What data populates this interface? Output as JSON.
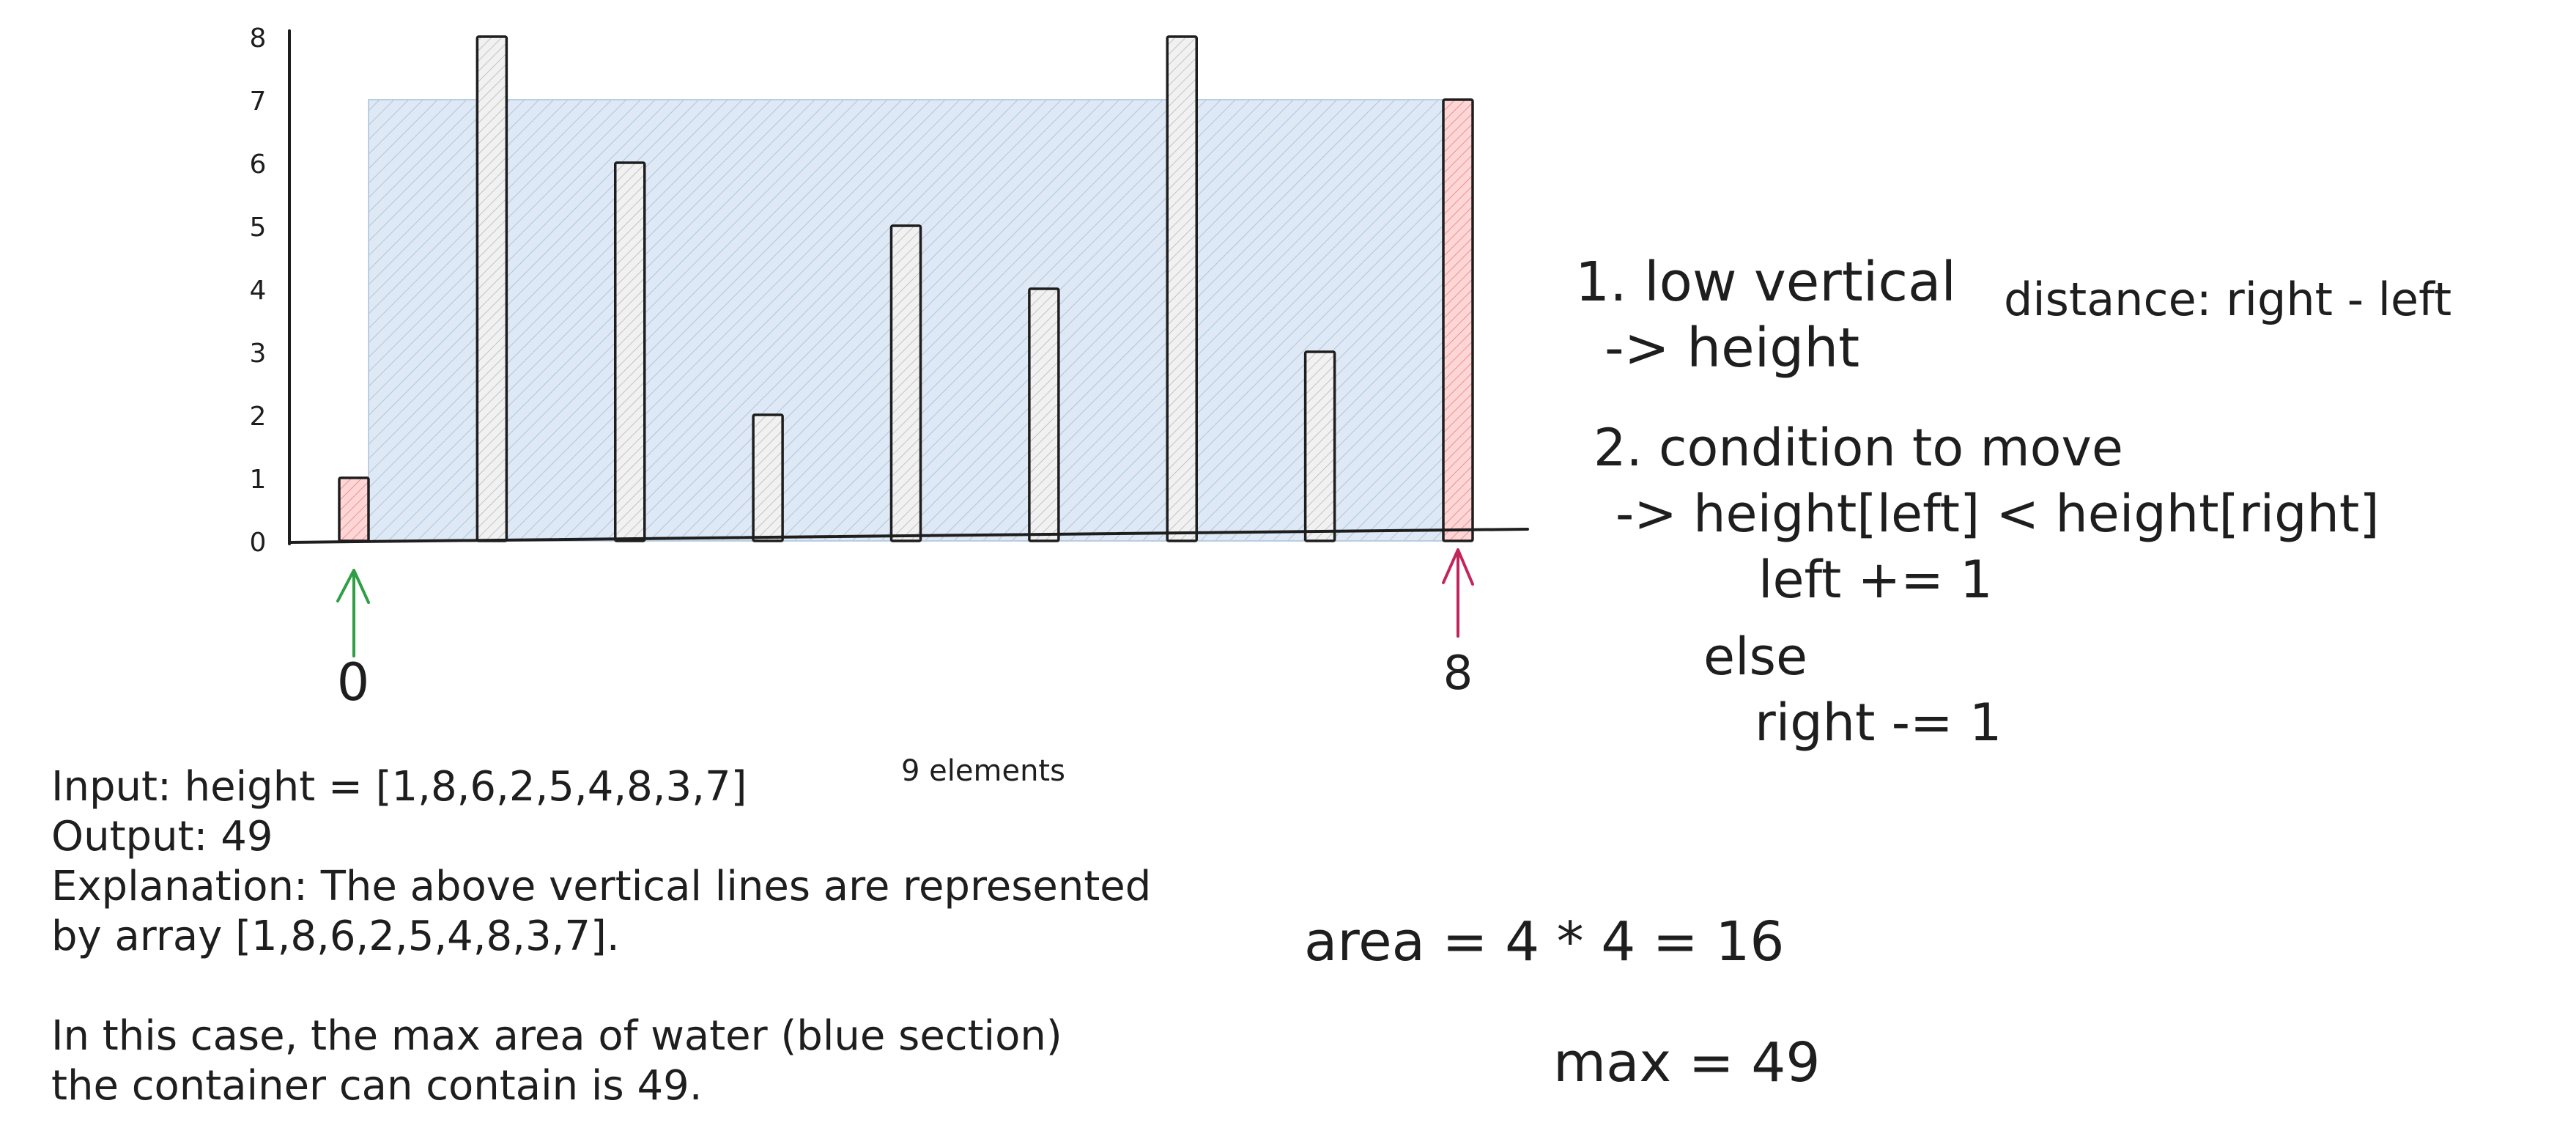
{
  "chart_data": {
    "type": "bar",
    "categories": [
      "0",
      "1",
      "2",
      "3",
      "4",
      "5",
      "6",
      "7",
      "8"
    ],
    "values": [
      1,
      8,
      6,
      2,
      5,
      4,
      8,
      3,
      7
    ],
    "ylim": [
      0,
      8
    ],
    "y_ticks": [
      "0",
      "1",
      "2",
      "3",
      "4",
      "5",
      "6",
      "7",
      "8"
    ],
    "highlight": {
      "left_index": 0,
      "right_index": 8,
      "left_label": "0",
      "right_label": "8",
      "water_height": 7
    },
    "colors": {
      "bar_fill": "#ededed",
      "highlight_fill": "#ffc9c9",
      "water_fill": "#c4d9ee",
      "left_arrow": "#2f9e44",
      "right_arrow": "#c2255c",
      "ink": "#1e1e1e"
    }
  },
  "notes": {
    "step1_line1": "1. low vertical",
    "step1_line2": "-> height",
    "distance": "distance: right - left",
    "step2_line1": "2. condition to move",
    "step2_line2": "-> height[left] < height[right]",
    "step2_line3": "left += 1",
    "step2_line4": "else",
    "step2_line5": "right -= 1",
    "elements_count": "9 elements",
    "area": "area = 4 * 4 = 16",
    "max": "max = 49"
  },
  "example": {
    "input": "Input: height = [1,8,6,2,5,4,8,3,7]",
    "output": "Output: 49",
    "explanation_line1": "Explanation: The above vertical lines are represented",
    "explanation_line2": "by array [1,8,6,2,5,4,8,3,7].",
    "case_line1": "In this case, the max area of water (blue section)",
    "case_line2": "the container can contain is 49."
  }
}
